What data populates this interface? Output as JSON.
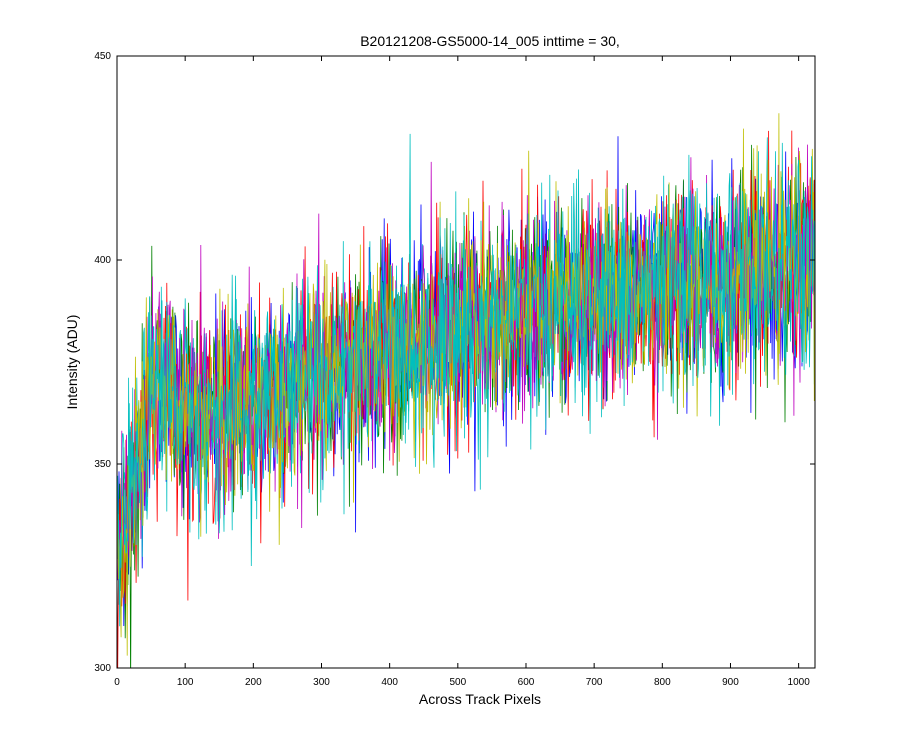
{
  "chart_data": {
    "type": "line",
    "title": "B20121208-GS5000-14_005 inttime = 30,",
    "xlabel": "Across Track Pixels",
    "ylabel": "Intensity (ADU)",
    "xlim": [
      0,
      1024
    ],
    "ylim": [
      300,
      450
    ],
    "xticks": [
      0,
      100,
      200,
      300,
      400,
      500,
      600,
      700,
      800,
      900,
      1000
    ],
    "yticks": [
      300,
      350,
      400,
      450
    ],
    "grid": false,
    "legend": "none",
    "series_colors": [
      "#0000ff",
      "#008000",
      "#ff0000",
      "#00bfbf",
      "#bf00bf",
      "#bfbf00",
      "#00bfbf"
    ],
    "trend": {
      "x": [
        0,
        10,
        25,
        40,
        60,
        100,
        150,
        200,
        300,
        400,
        500,
        600,
        700,
        800,
        900,
        1024
      ],
      "mean": [
        330,
        335,
        345,
        358,
        365,
        360,
        362,
        365,
        372,
        378,
        383,
        387,
        390,
        393,
        396,
        399
      ]
    },
    "noise_spread": 12,
    "series_count": 7
  }
}
